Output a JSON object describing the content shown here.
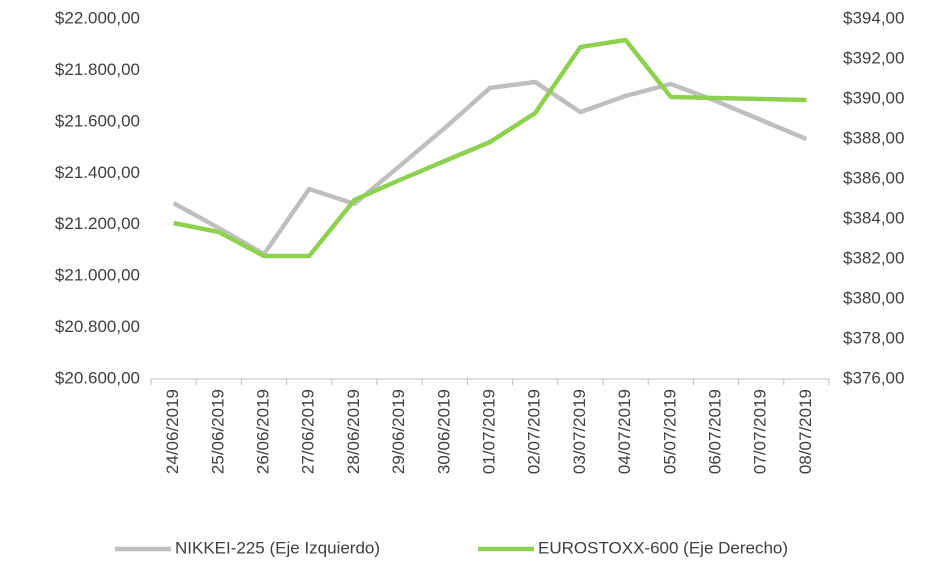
{
  "chart_data": {
    "type": "line",
    "categories": [
      "24/06/2019",
      "25/06/2019",
      "26/06/2019",
      "27/06/2019",
      "28/06/2019",
      "29/06/2019",
      "30/06/2019",
      "01/07/2019",
      "02/07/2019",
      "03/07/2019",
      "04/07/2019",
      "05/07/2019",
      "06/07/2019",
      "07/07/2019",
      "08/07/2019"
    ],
    "series": [
      {
        "name": "NIKKEI-225 (Eje Izquierdo)",
        "color": "#bfbfbf",
        "values": [
          21284,
          21187,
          21086,
          21339,
          21281,
          21428,
          21576,
          21732,
          21755,
          21638,
          21701,
          21747,
          21681,
          21607,
          21533
        ]
      },
      {
        "name": "EUROSTOXX-600 (Eje Derecho)",
        "color": "#8ed14f",
        "axis": "y2",
        "values": [
          383.8,
          383.35,
          382.15,
          382.15,
          384.95,
          385.95,
          386.9,
          387.85,
          389.3,
          392.6,
          392.95,
          390.1,
          390.05,
          390.0,
          389.95
        ]
      }
    ],
    "ylim": [
      20600,
      22000
    ],
    "yticks": [
      {
        "value": 20600,
        "label": "$20.600,00"
      },
      {
        "value": 20800,
        "label": "$20.800,00"
      },
      {
        "value": 21000,
        "label": "$21.000,00"
      },
      {
        "value": 21200,
        "label": "$21.200,00"
      },
      {
        "value": 21400,
        "label": "$21.400,00"
      },
      {
        "value": 21600,
        "label": "$21.600,00"
      },
      {
        "value": 21800,
        "label": "$21.800,00"
      },
      {
        "value": 22000,
        "label": "$22.000,00"
      }
    ],
    "y2lim": [
      376,
      394
    ],
    "y2ticks": [
      {
        "value": 376,
        "label": "$376,00"
      },
      {
        "value": 378,
        "label": "$378,00"
      },
      {
        "value": 380,
        "label": "$380,00"
      },
      {
        "value": 382,
        "label": "$382,00"
      },
      {
        "value": 384,
        "label": "$384,00"
      },
      {
        "value": 386,
        "label": "$386,00"
      },
      {
        "value": 388,
        "label": "$388,00"
      },
      {
        "value": 390,
        "label": "$390,00"
      },
      {
        "value": 392,
        "label": "$392,00"
      },
      {
        "value": 394,
        "label": "$394,00"
      }
    ],
    "grid": false,
    "legend": "bottom"
  }
}
